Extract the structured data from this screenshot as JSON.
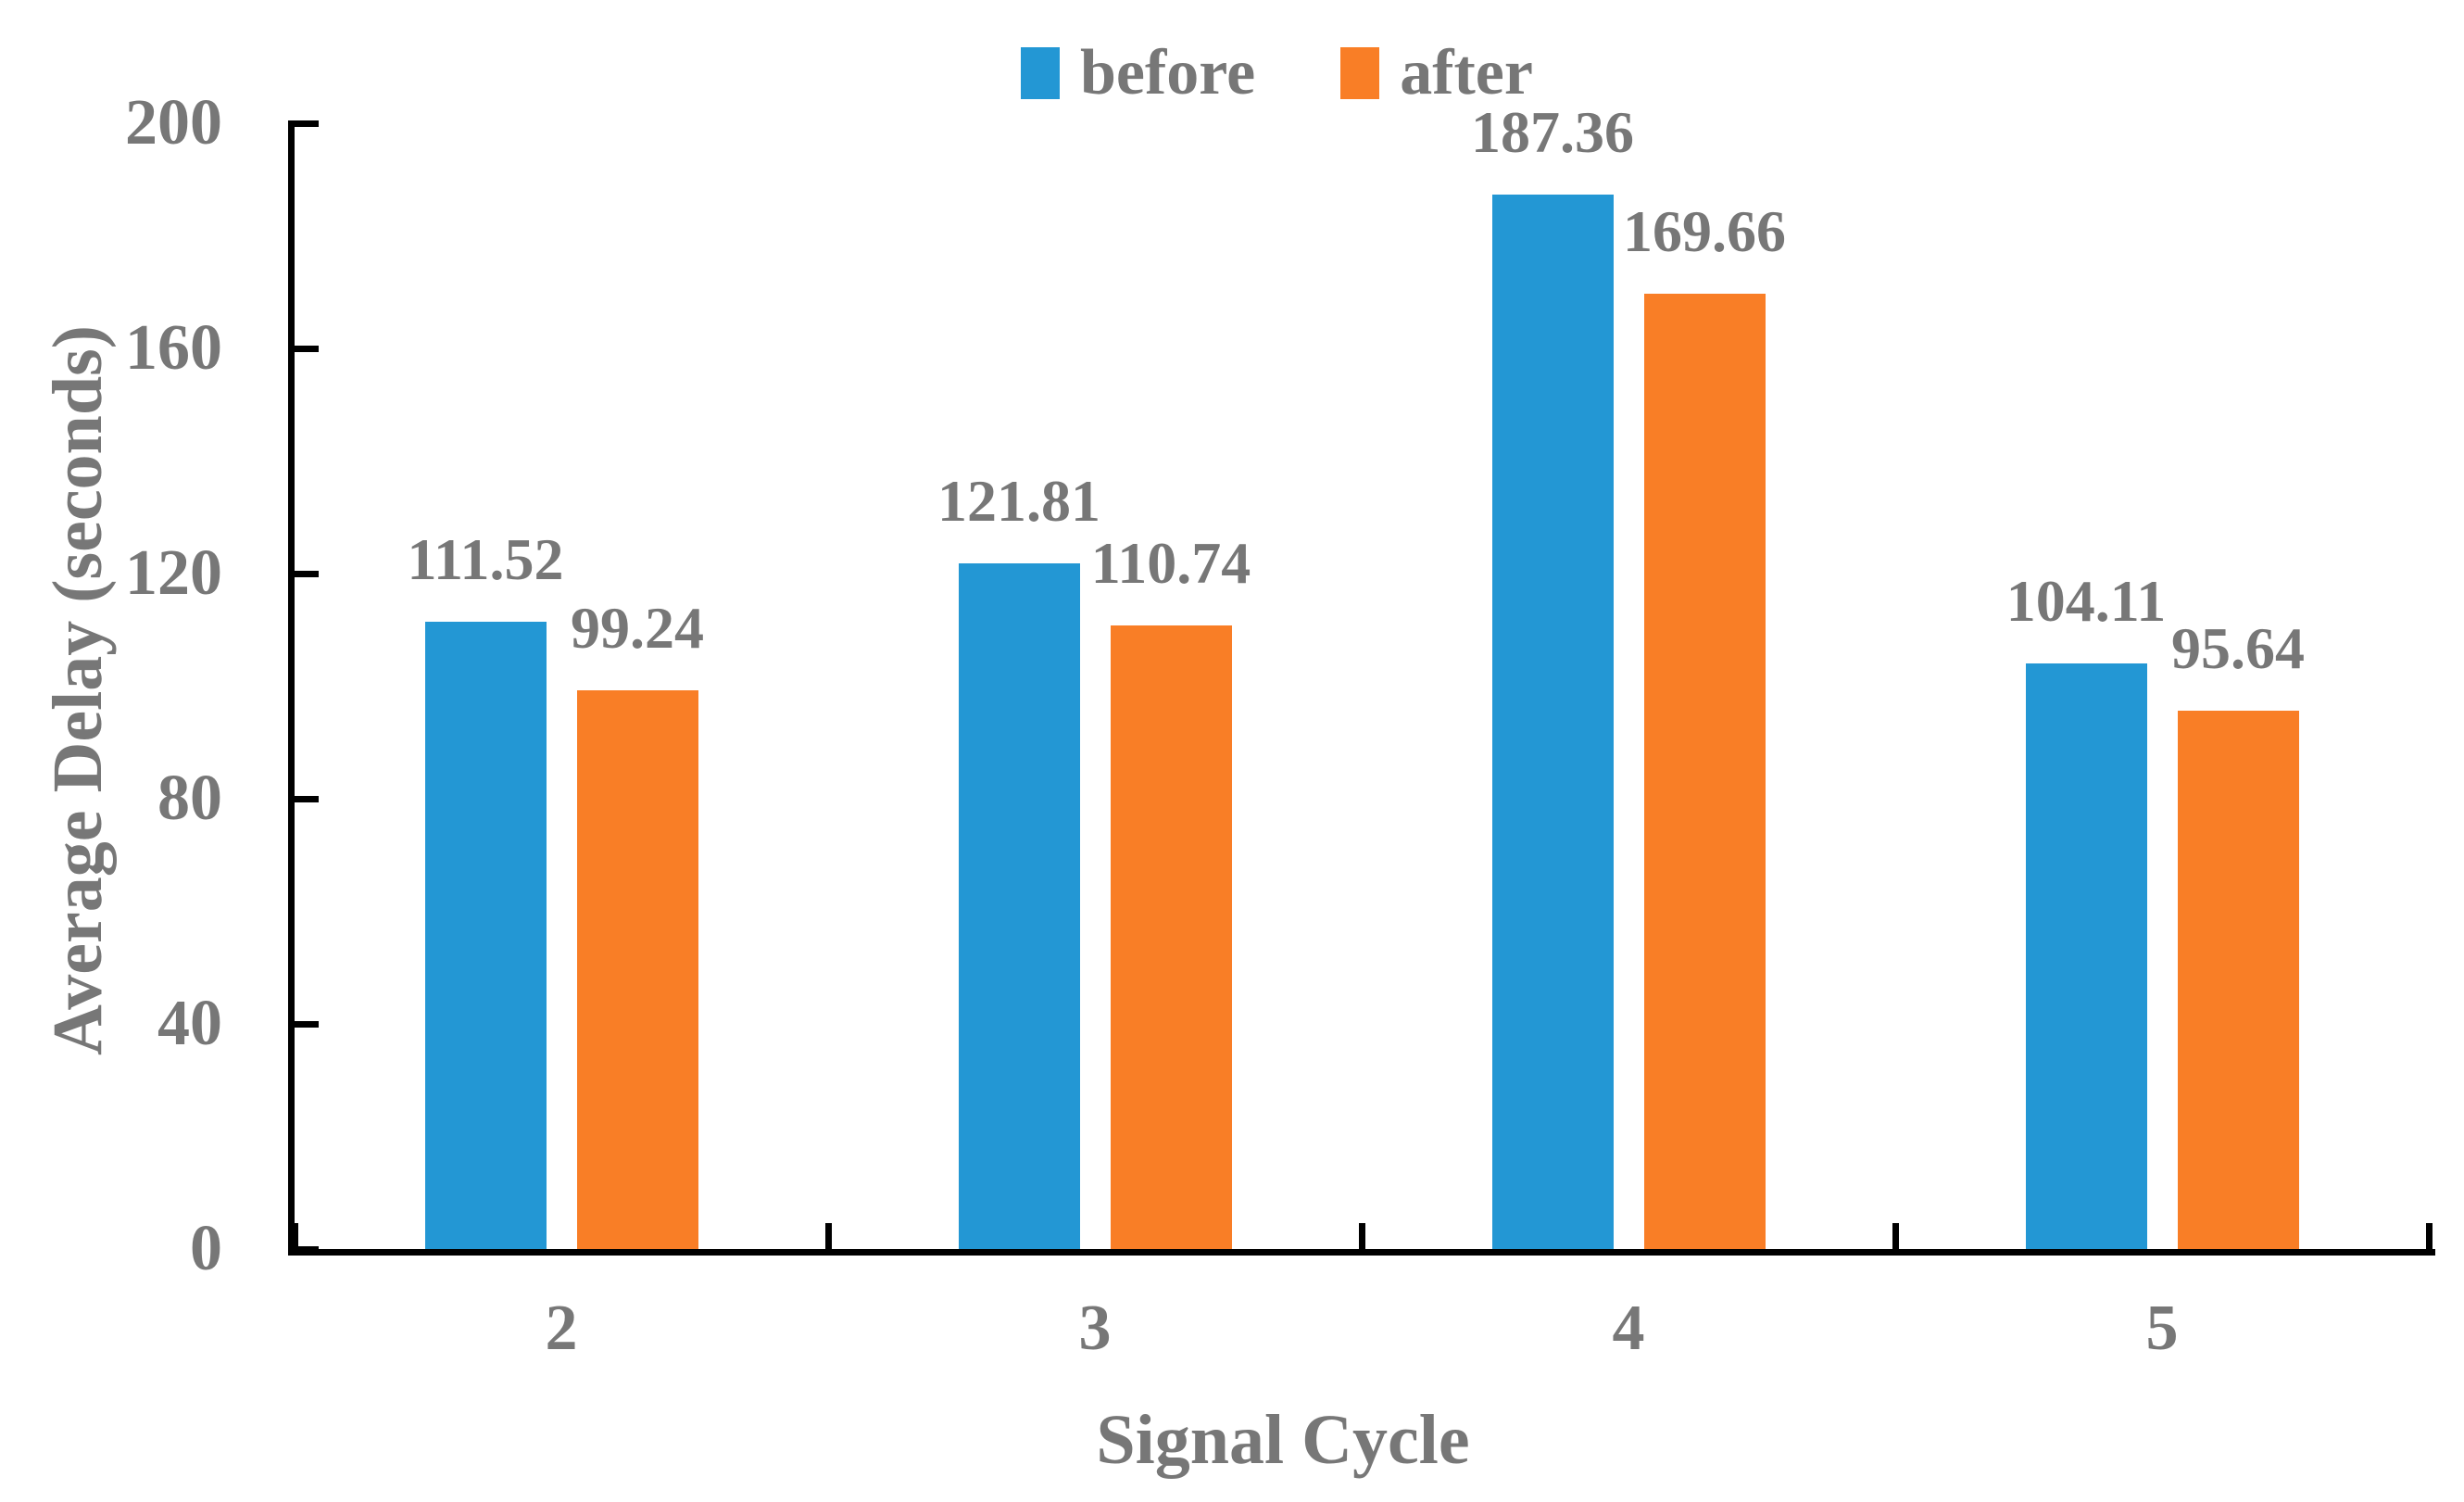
{
  "chart_data": {
    "type": "bar",
    "title": "",
    "categories": [
      "2",
      "3",
      "4",
      "5"
    ],
    "series": [
      {
        "name": "before",
        "color": "#2397d4",
        "values": [
          111.52,
          121.81,
          187.36,
          104.11
        ]
      },
      {
        "name": "after",
        "color": "#f97e26",
        "values": [
          99.24,
          110.74,
          169.66,
          95.64
        ]
      }
    ],
    "xlabel": "Signal Cycle",
    "ylabel": "Average Delay (seconds)",
    "ylim": [
      0,
      200
    ],
    "yticks": [
      0,
      40,
      80,
      120,
      160,
      200
    ],
    "legend_position": "top-center",
    "grid": false,
    "data_labels": true,
    "text_color": "#777777",
    "axis_color": "#000000"
  }
}
